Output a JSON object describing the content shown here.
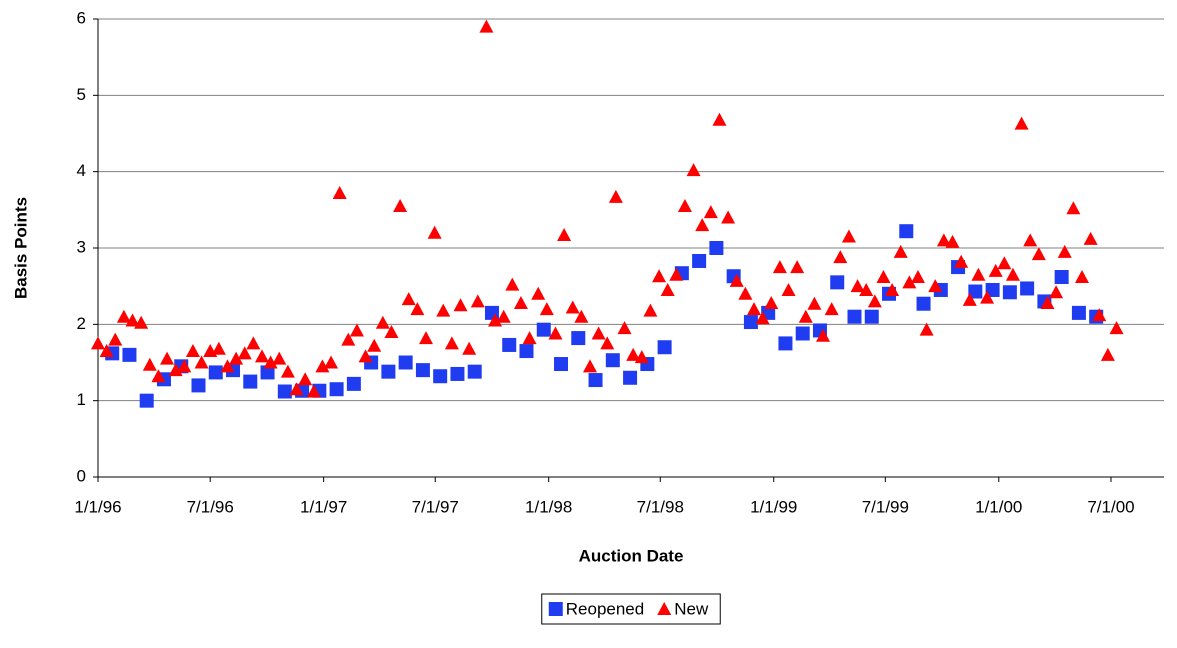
{
  "chart_data": {
    "type": "scatter",
    "x_label": "Auction Date",
    "y_label": "Basis Points",
    "xlim": [
      "1996-01-01",
      "2000-09-25"
    ],
    "xticks": [
      {
        "value": "1996-01-01",
        "label": "1/1/96"
      },
      {
        "value": "1996-07-01",
        "label": "7/1/96"
      },
      {
        "value": "1997-01-01",
        "label": "1/1/97"
      },
      {
        "value": "1997-07-01",
        "label": "7/1/97"
      },
      {
        "value": "1998-01-01",
        "label": "1/1/98"
      },
      {
        "value": "1998-07-01",
        "label": "7/1/98"
      },
      {
        "value": "1999-01-01",
        "label": "1/1/99"
      },
      {
        "value": "1999-07-01",
        "label": "7/1/99"
      },
      {
        "value": "2000-01-01",
        "label": "1/1/00"
      },
      {
        "value": "2000-07-01",
        "label": "7/1/00"
      }
    ],
    "ylim": [
      0,
      6
    ],
    "yticks": [
      0,
      1,
      2,
      3,
      4,
      5,
      6
    ],
    "grid": true,
    "legend": "bottom",
    "series": [
      {
        "name": "Reopened",
        "color": "#1f3cf0",
        "marker": "square",
        "x": [
          "1996-01-24",
          "1996-02-21",
          "1996-03-20",
          "1996-04-17",
          "1996-05-15",
          "1996-06-12",
          "1996-07-10",
          "1996-08-07",
          "1996-09-04",
          "1996-10-02",
          "1996-10-30",
          "1996-11-27",
          "1996-12-25",
          "1997-01-22",
          "1997-02-19",
          "1997-03-19",
          "1997-04-16",
          "1997-05-14",
          "1997-06-11",
          "1997-07-09",
          "1997-08-06",
          "1997-09-03",
          "1997-10-01",
          "1997-10-29",
          "1997-11-26",
          "1997-12-24",
          "1998-01-21",
          "1998-02-18",
          "1998-03-18",
          "1998-04-15",
          "1998-05-13",
          "1998-06-10",
          "1998-07-08",
          "1998-08-05",
          "1998-09-02",
          "1998-09-30",
          "1998-10-28",
          "1998-11-25",
          "1998-12-23",
          "1999-01-20",
          "1999-02-17",
          "1999-03-17",
          "1999-04-14",
          "1999-05-12",
          "1999-06-09",
          "1999-07-07",
          "1999-08-04",
          "1999-09-01",
          "1999-09-29",
          "1999-10-27",
          "1999-11-24",
          "1999-12-22",
          "2000-01-19",
          "2000-02-16",
          "2000-03-15",
          "2000-04-12",
          "2000-05-10",
          "2000-06-07"
        ],
        "values": [
          1.62,
          1.6,
          1.0,
          1.28,
          1.45,
          1.2,
          1.37,
          1.4,
          1.25,
          1.37,
          1.12,
          1.13,
          1.13,
          1.15,
          1.22,
          1.5,
          1.38,
          1.5,
          1.4,
          1.32,
          1.35,
          1.38,
          2.15,
          1.73,
          1.65,
          1.93,
          1.48,
          1.82,
          1.27,
          1.53,
          1.3,
          1.48,
          1.7,
          2.67,
          2.83,
          3.0,
          2.63,
          2.03,
          2.15,
          1.75,
          1.88,
          1.92,
          2.55,
          2.1,
          2.1,
          2.4,
          3.22,
          2.27,
          2.45,
          2.75,
          2.43,
          2.45,
          2.42,
          2.47,
          2.3,
          2.62,
          2.15,
          2.1
        ]
      },
      {
        "name": "New",
        "color": "#ff0000",
        "marker": "triangle",
        "x": [
          "1996-01-01",
          "1996-01-15",
          "1996-01-29",
          "1996-02-12",
          "1996-02-26",
          "1996-03-11",
          "1996-03-25",
          "1996-04-08",
          "1996-04-22",
          "1996-05-06",
          "1996-05-20",
          "1996-06-03",
          "1996-06-17",
          "1996-07-01",
          "1996-07-15",
          "1996-07-29",
          "1996-08-12",
          "1996-08-26",
          "1996-09-09",
          "1996-09-23",
          "1996-10-07",
          "1996-10-21",
          "1996-11-04",
          "1996-11-18",
          "1996-12-02",
          "1996-12-16",
          "1996-12-30",
          "1997-01-13",
          "1997-01-27",
          "1997-02-10",
          "1997-02-24",
          "1997-03-10",
          "1997-03-24",
          "1997-04-07",
          "1997-04-21",
          "1997-05-05",
          "1997-05-19",
          "1997-06-02",
          "1997-06-16",
          "1997-06-30",
          "1997-07-14",
          "1997-07-28",
          "1997-08-11",
          "1997-08-25",
          "1997-09-08",
          "1997-09-22",
          "1997-10-06",
          "1997-10-20",
          "1997-11-03",
          "1997-11-17",
          "1997-12-01",
          "1997-12-15",
          "1997-12-29",
          "1998-01-12",
          "1998-01-26",
          "1998-02-09",
          "1998-02-23",
          "1998-03-09",
          "1998-03-23",
          "1998-04-06",
          "1998-04-20",
          "1998-05-04",
          "1998-05-18",
          "1998-06-01",
          "1998-06-15",
          "1998-06-29",
          "1998-07-13",
          "1998-07-27",
          "1998-08-10",
          "1998-08-24",
          "1998-09-07",
          "1998-09-21",
          "1998-10-05",
          "1998-10-19",
          "1998-11-02",
          "1998-11-16",
          "1998-11-30",
          "1998-12-14",
          "1998-12-28",
          "1999-01-11",
          "1999-01-25",
          "1999-02-08",
          "1999-02-22",
          "1999-03-08",
          "1999-03-22",
          "1999-04-05",
          "1999-04-19",
          "1999-05-03",
          "1999-05-17",
          "1999-05-31",
          "1999-06-14",
          "1999-06-28",
          "1999-07-12",
          "1999-07-26",
          "1999-08-09",
          "1999-08-23",
          "1999-09-06",
          "1999-09-20",
          "1999-10-04",
          "1999-10-18",
          "1999-11-01",
          "1999-11-15",
          "1999-11-29",
          "1999-12-13",
          "1999-12-27",
          "2000-01-10",
          "2000-01-24",
          "2000-02-07",
          "2000-02-21",
          "2000-03-06",
          "2000-03-20",
          "2000-04-03",
          "2000-04-17",
          "2000-05-01",
          "2000-05-15",
          "2000-05-29",
          "2000-06-12",
          "2000-06-26",
          "2000-07-10"
        ],
        "values": [
          1.75,
          1.65,
          1.8,
          2.1,
          2.05,
          2.02,
          1.47,
          1.32,
          1.55,
          1.4,
          1.45,
          1.65,
          1.5,
          1.65,
          1.68,
          1.45,
          1.55,
          1.62,
          1.75,
          1.58,
          1.5,
          1.55,
          1.38,
          1.15,
          1.28,
          1.12,
          1.45,
          1.5,
          3.72,
          1.8,
          1.92,
          1.58,
          1.72,
          2.02,
          1.9,
          3.55,
          2.33,
          2.2,
          1.82,
          3.2,
          2.18,
          1.75,
          2.25,
          1.68,
          2.3,
          5.9,
          2.05,
          2.1,
          2.52,
          2.28,
          1.82,
          2.4,
          2.2,
          1.88,
          3.17,
          2.22,
          2.1,
          1.45,
          1.88,
          1.75,
          3.67,
          1.95,
          1.6,
          1.57,
          2.18,
          2.63,
          2.45,
          2.65,
          3.55,
          4.02,
          3.3,
          3.47,
          4.68,
          3.4,
          2.57,
          2.4,
          2.2,
          2.08,
          2.28,
          2.75,
          2.45,
          2.75,
          2.1,
          2.27,
          1.85,
          2.2,
          2.88,
          3.15,
          2.5,
          2.45,
          2.3,
          2.62,
          2.45,
          2.95,
          2.55,
          2.62,
          1.93,
          2.5,
          3.1,
          3.08,
          2.82,
          2.32,
          2.65,
          2.35,
          2.7,
          2.8,
          2.65,
          4.63,
          3.1,
          2.92,
          2.28,
          2.42,
          2.95,
          3.52,
          2.62,
          3.12,
          2.12,
          1.6,
          1.95
        ]
      }
    ]
  }
}
